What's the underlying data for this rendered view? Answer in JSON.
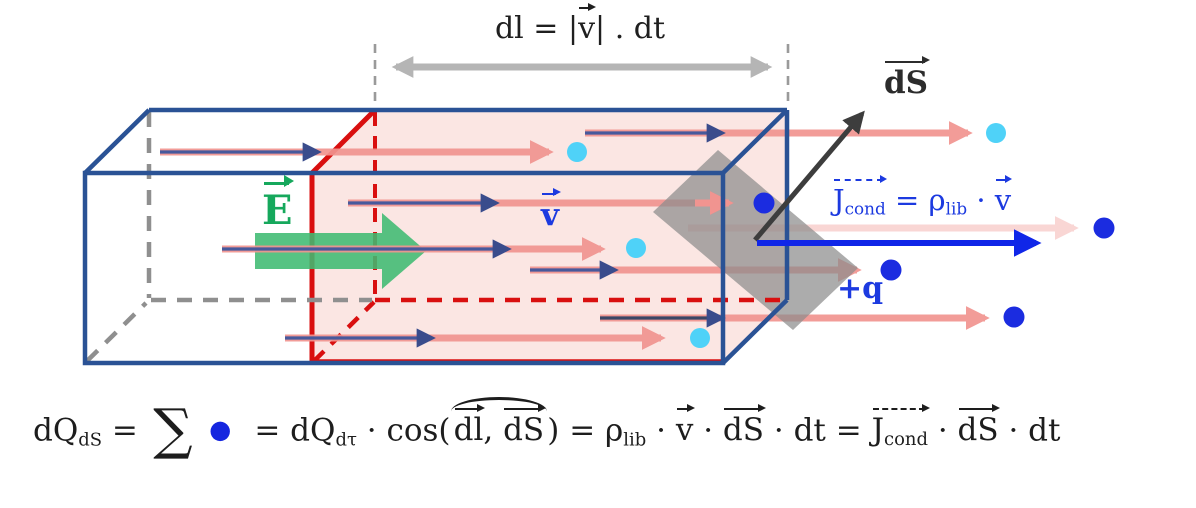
{
  "labels": {
    "dl_extent": [
      {
        "t": "dl = |"
      },
      {
        "vec": "v"
      },
      {
        "t": "| . dt"
      }
    ],
    "e_field": [
      {
        "vec": "E"
      }
    ],
    "velocity": [
      {
        "vec": "v"
      }
    ],
    "surface": [
      {
        "vec": "dS"
      }
    ],
    "current_density": [
      {
        "vecg": [
          {
            "t": "J"
          },
          {
            "sub": "cond"
          }
        ]
      },
      {
        "t": " = ρ"
      },
      {
        "sub": "lib"
      },
      {
        "t": " · "
      },
      {
        "vec": "v"
      }
    ],
    "charge": [
      {
        "t": "+q"
      }
    ],
    "formula": [
      {
        "t": "dQ"
      },
      {
        "sub": "dS"
      },
      {
        "t": " = "
      },
      {
        "sum": "∑"
      },
      {
        "dot": "●"
      },
      {
        "t": " = dQ"
      },
      {
        "sub": "dτ"
      },
      {
        "t": " · cos("
      },
      {
        "hat": [
          {
            "vec": "dl"
          },
          {
            "t": ", "
          },
          {
            "vec": "dS"
          }
        ]
      },
      {
        "t": ") = ρ"
      },
      {
        "sub": "lib"
      },
      {
        "t": " · "
      },
      {
        "vec": "v"
      },
      {
        "t": " · "
      },
      {
        "vec": "dS"
      },
      {
        "t": " · dt = "
      },
      {
        "vecg": [
          {
            "t": "J"
          },
          {
            "sub": "cond"
          }
        ]
      },
      {
        "t": " · "
      },
      {
        "vec": "dS"
      },
      {
        "t": " · dt"
      }
    ]
  },
  "colors": {
    "box_edge": "#2a5295",
    "hidden_edge": "#8f8f8f",
    "section_red": "#d90f0f",
    "swept_volume_fill": "#fbe6e3",
    "field_green": "#3fbb72",
    "charge_arrow_salmon": "#f19490",
    "charge_arrow_dark": "#47599c",
    "charge_dot_inside_cyan": "#4fd2f8",
    "charge_dot_crossed_blue": "#1b2ce0",
    "surface_element_gray": "#8c8c8c",
    "ds_arrow_dark": "#3d3d3d",
    "current_arrow_blue": "#1026e8",
    "label_blue": "#1c3ae0",
    "extent_arrow_gray": "#b5b5b5",
    "formula_text": "#1d1d1d"
  }
}
